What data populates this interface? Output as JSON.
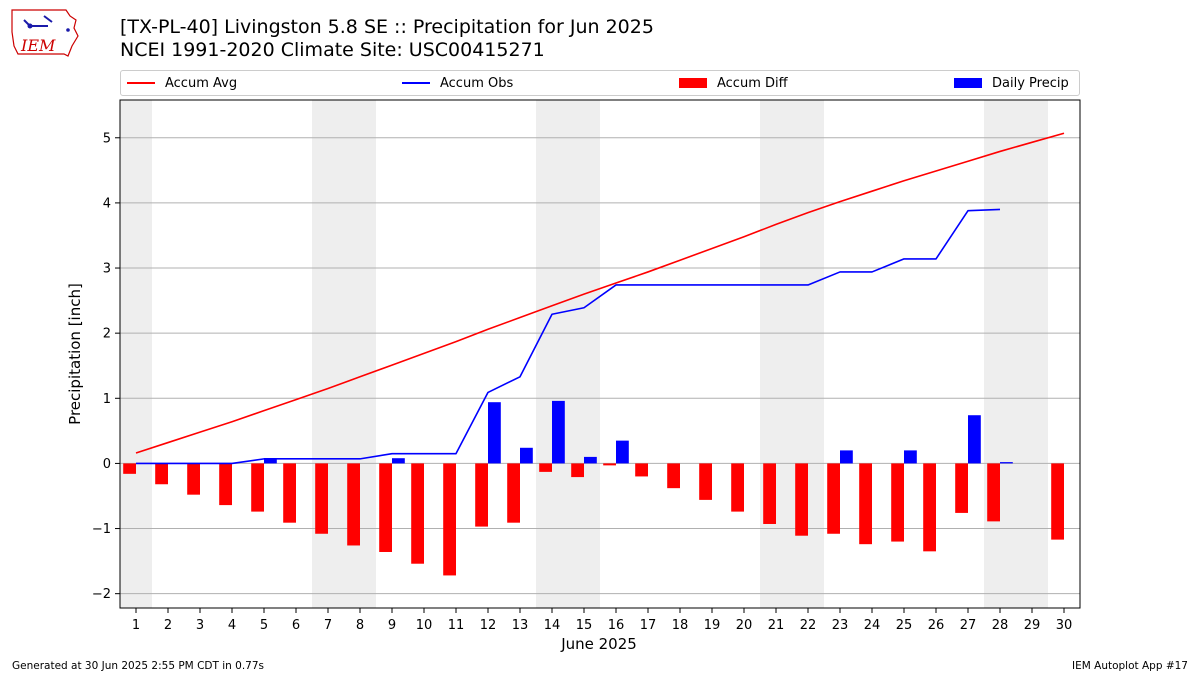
{
  "title_line1": "[TX-PL-40] Livingston 5.8 SE :: Precipitation for Jun 2025",
  "title_line2": "NCEI 1991-2020 Climate Site: USC00415271",
  "logo_text": "IEM",
  "legend": {
    "accum_avg": "Accum Avg",
    "accum_obs": "Accum Obs",
    "accum_diff": "Accum Diff",
    "daily_precip": "Daily Precip"
  },
  "footer": {
    "generated": "Generated at 30 Jun 2025 2:55 PM CDT in 0.77s",
    "app": "IEM Autoplot App #17"
  },
  "colors": {
    "accum_avg": "#ff0000",
    "accum_obs": "#0000ff",
    "accum_diff": "#ff0000",
    "daily_precip": "#0000ff",
    "weekend_shade": "#eeeeee",
    "grid": "#b0b0b0"
  },
  "chart_data": {
    "type": "bar",
    "xlabel": "June 2025",
    "ylabel": "Precipitation [inch]",
    "x": [
      1,
      2,
      3,
      4,
      5,
      6,
      7,
      8,
      9,
      10,
      11,
      12,
      13,
      14,
      15,
      16,
      17,
      18,
      19,
      20,
      21,
      22,
      23,
      24,
      25,
      26,
      27,
      28,
      29,
      30
    ],
    "xlim": [
      0.5,
      30.5
    ],
    "ylim": [
      -2.22,
      5.58
    ],
    "yticks": [
      -2,
      -1,
      0,
      1,
      2,
      3,
      4,
      5
    ],
    "grid": "horizontal",
    "legend_placement": "top",
    "weekend_days": [
      1,
      7,
      8,
      14,
      15,
      21,
      22,
      28,
      29
    ],
    "series": [
      {
        "name": "Accum Avg",
        "kind": "line",
        "values": [
          0.16,
          0.32,
          0.48,
          0.64,
          0.81,
          0.98,
          1.15,
          1.33,
          1.51,
          1.69,
          1.87,
          2.06,
          2.24,
          2.42,
          2.6,
          2.77,
          2.94,
          3.12,
          3.3,
          3.48,
          3.67,
          3.85,
          4.02,
          4.18,
          4.34,
          4.49,
          4.64,
          4.79,
          4.93,
          5.07
        ]
      },
      {
        "name": "Accum Obs",
        "kind": "line",
        "values": [
          0.0,
          0.0,
          0.0,
          0.0,
          0.07,
          0.07,
          0.07,
          0.07,
          0.15,
          0.15,
          0.15,
          1.09,
          1.33,
          2.29,
          2.39,
          2.74,
          2.74,
          2.74,
          2.74,
          2.74,
          2.74,
          2.74,
          2.94,
          2.94,
          3.14,
          3.14,
          3.88,
          3.9,
          null,
          null
        ]
      },
      {
        "name": "Accum Diff",
        "kind": "bar",
        "values": [
          -0.16,
          -0.32,
          -0.48,
          -0.64,
          -0.74,
          -0.91,
          -1.08,
          -1.26,
          -1.36,
          -1.54,
          -1.72,
          -0.97,
          -0.91,
          -0.13,
          -0.21,
          -0.03,
          -0.2,
          -0.38,
          -0.56,
          -0.74,
          -0.93,
          -1.11,
          -1.08,
          -1.24,
          -1.2,
          -1.35,
          -0.76,
          -0.89,
          null,
          -1.17
        ]
      },
      {
        "name": "Daily Precip",
        "kind": "bar",
        "values": [
          0,
          0,
          0,
          0,
          0.07,
          0,
          0,
          0,
          0.08,
          0,
          0,
          0.94,
          0.24,
          0.96,
          0.1,
          0.35,
          0,
          0,
          0,
          0,
          0,
          0,
          0.2,
          0,
          0.2,
          0,
          0.74,
          0.02,
          0,
          0
        ]
      }
    ]
  }
}
